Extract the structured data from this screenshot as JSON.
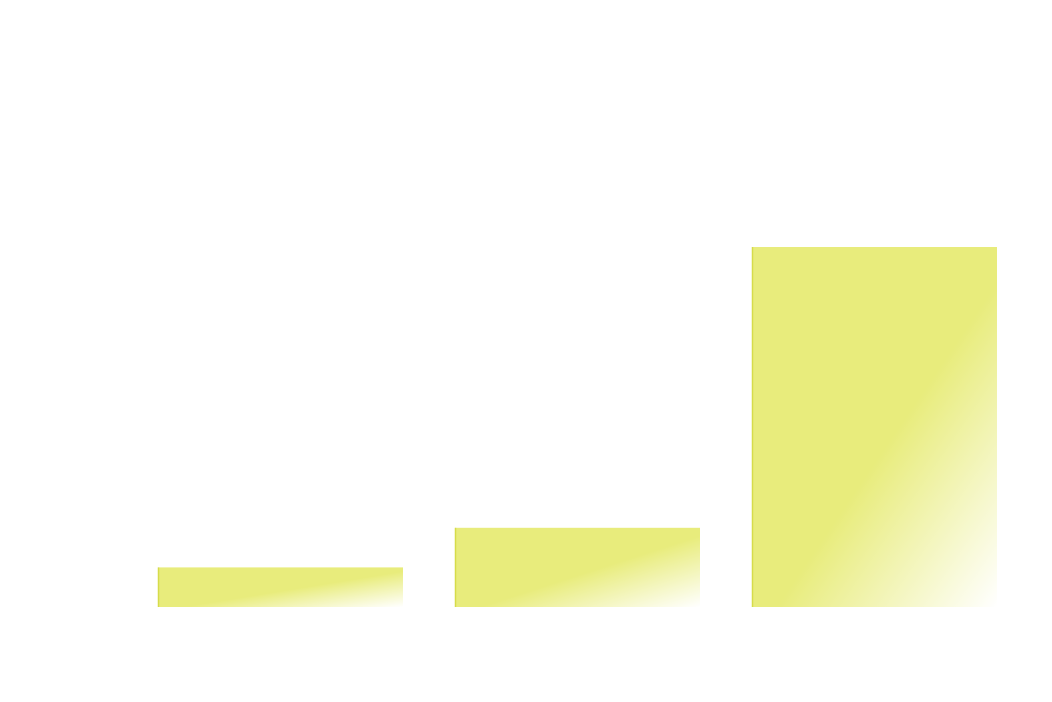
{
  "chart_data": {
    "type": "bar",
    "categories": [
      "",
      "",
      ""
    ],
    "values": [
      11,
      22,
      100
    ],
    "ylim": [
      0,
      100
    ],
    "grid": false,
    "legend": "none",
    "colors": {
      "bar_fill": "#e8ec7c",
      "bar_fade": "#ffffff",
      "bar_edge": "#d6dc4a"
    }
  }
}
